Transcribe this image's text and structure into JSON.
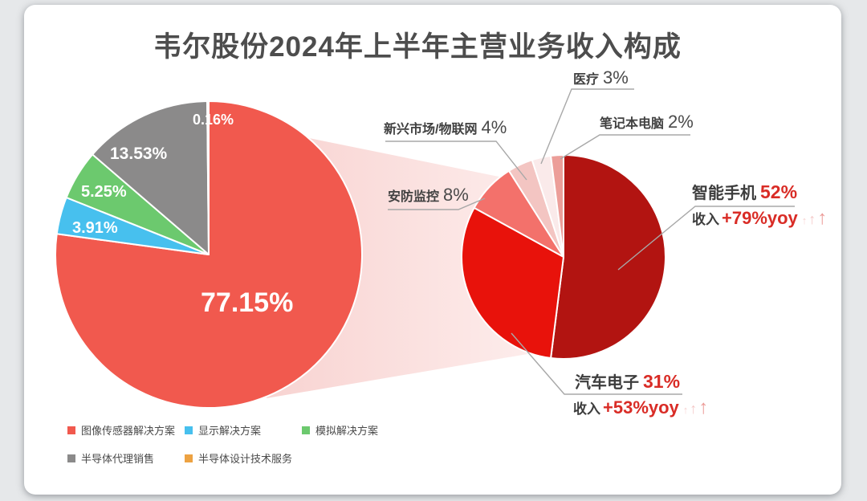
{
  "title": "韦尔股份2024年上半年主营业务收入构成",
  "colors": {
    "accent_red_text": "#d92c26",
    "dark_text": "#3d3d3d",
    "leader_line": "#a8a8a8",
    "beam_start": "#f8d3d1",
    "beam_end": "#fdeceb",
    "card_background": "#ffffff",
    "title_text": "#4d4d4d"
  },
  "chart_data": [
    {
      "type": "pie",
      "name": "主营业务收入构成",
      "start_angle_deg": 0,
      "direction": "clockwise",
      "legend_position": "bottom-left",
      "slices": [
        {
          "label": "图像传感器解决方案",
          "value": 77.15,
          "display": "77.15%",
          "color": "#f1594e"
        },
        {
          "label": "显示解决方案",
          "value": 3.91,
          "display": "3.91%",
          "color": "#47c0ee"
        },
        {
          "label": "模拟解决方案",
          "value": 5.25,
          "display": "5.25%",
          "color": "#6cc96e"
        },
        {
          "label": "半导体代理销售",
          "value": 13.53,
          "display": "13.53%",
          "color": "#8b8a8a"
        },
        {
          "label": "半导体设计技术服务",
          "value": 0.16,
          "display": "0.16%",
          "color": "#eda242"
        }
      ]
    },
    {
      "type": "pie",
      "name": "图像传感器解决方案收入构成",
      "start_angle_deg": 0,
      "direction": "clockwise",
      "slices": [
        {
          "label": "智能手机",
          "value": 52,
          "display": "52%",
          "color": "#b21411",
          "note_label": "收入",
          "note_value": "+79%yoy"
        },
        {
          "label": "汽车电子",
          "value": 31,
          "display": "31%",
          "color": "#e8120b",
          "note_label": "收入",
          "note_value": "+53%yoy"
        },
        {
          "label": "安防监控",
          "value": 8,
          "display": "8%",
          "color": "#f3716b"
        },
        {
          "label": "新兴市场/物联网",
          "value": 4,
          "display": "4%",
          "color": "#f3c5c2"
        },
        {
          "label": "医疗",
          "value": 3,
          "display": "3%",
          "color": "#faeaea"
        },
        {
          "label": "笔记本电脑",
          "value": 2,
          "display": "2%",
          "color": "#ec9e99"
        }
      ]
    }
  ]
}
